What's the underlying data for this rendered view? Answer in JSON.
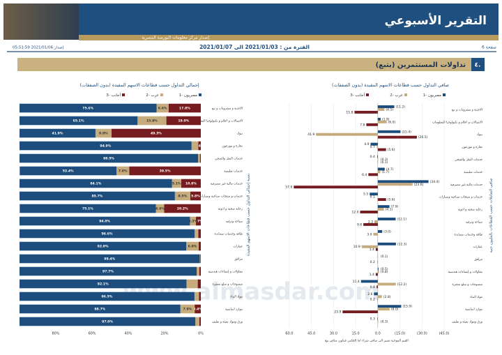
{
  "header": {
    "title": "التقرير الأسبوعي",
    "publisher": "إصدار مركز معلومات البورصة المصرية",
    "page": "صفحة 6",
    "period": "الفترة من : 2021/01/03 الى 2021/01/07",
    "issued": "إصدار 2021/01/06 05:51:59"
  },
  "section": {
    "number": "٤.",
    "title": "تداولات المستثمرين (بتبع)"
  },
  "watermark": "www.almasdar.com",
  "chart_data": [
    {
      "type": "bar",
      "title": "صافي التداول حسب قطاعات الاسهم المقيدة (بدون الصفقات)",
      "y_label": "صافي التعاملات حسب القطاعات بالمليون جنيه",
      "note": "القيم الموجبة تشير الى صافي شراء اما العكس فيكون صافي بيع",
      "categories": [
        "الاغذية و مشروبات و تبغ",
        "الاتصالات و اعلام و تكنولوجيا المعلومات",
        "بنوك",
        "تجارة و موزعون",
        "خدمات النقل والشحن",
        "خدمات تعليمية",
        "خدمات مالية غير مصرفية",
        "خدمات و منتجات صناعية وسيارات",
        "رعاية صحية و ادوية",
        "سياحة وترفيه",
        "طاقة وخدمات مساندة",
        "عقارات",
        "مرافق",
        "مقاولات و إنشاءات هندسية",
        "منسوجات و سلع معمرة",
        "مواد البناء",
        "موارد اساسية",
        "ورق ومواد تعبئة و تغليف"
      ],
      "series": [
        {
          "name": "مصريون -1",
          "color": "#1d4d7c",
          "values": [
            -11.2,
            -1.9,
            -15.4,
            4.9,
            0.4,
            -4.7,
            -34.4,
            5.5,
            -7.9,
            -12.1,
            -3.0,
            -12.3,
            -0.1,
            -0.5,
            11.4,
            2.6,
            -15.9,
            0.3
          ],
          "value_labels": [
            "(11.2)",
            "(1.9)",
            "(15.4)",
            "4.9",
            "0.4",
            "(4.7)",
            "(34.4)",
            "5.5",
            "(7.9)",
            "(12.1)",
            "(3.0)",
            "(12.3)",
            "(0.1)",
            "(0.5)",
            "11.4",
            "2.6",
            "(15.9)",
            "0.3"
          ]
        },
        {
          "name": "عرب -2",
          "color": "#c6ab7c",
          "values": [
            -4.5,
            -6.0,
            41.9,
            0.7,
            -0.3,
            -1.7,
            -23.6,
            0.1,
            -4.1,
            2.3,
            3.0,
            10.9,
            0,
            -0.8,
            -12.2,
            -2.8,
            -8.0,
            -0.3
          ],
          "value_labels": [
            "(4.5)",
            "(6.0)",
            "41.9",
            "0.7",
            "(0.3)",
            "(1.7)",
            "(23.6)",
            "0.1",
            "(4.1)",
            "2.3",
            "3.0",
            "10.9",
            null,
            "(0.8)",
            "(12.2)",
            "(2.8)",
            "(8.0)",
            "(0.3)"
          ]
        },
        {
          "name": "أجانب -3",
          "color": "#761b1f",
          "values": [
            15.8,
            7.8,
            -26.5,
            -5.6,
            -0.1,
            6.4,
            57.0,
            -5.6,
            12.0,
            9.8,
            0,
            1.4,
            0.2,
            1.4,
            0.8,
            0.2,
            23.9,
            0
          ],
          "value_labels": [
            "15.8",
            "7.8",
            "(26.5)",
            "(5.6)",
            "(0.1)",
            "6.4",
            "57.0",
            "(5.6)",
            "12.0",
            "9.8",
            null,
            "1.4",
            "0.2",
            "1.4",
            "0.8",
            "0.2",
            "23.9",
            null
          ]
        }
      ],
      "xlim": [
        60,
        -45
      ],
      "xticks": [
        {
          "value": 60,
          "label": "60.0"
        },
        {
          "value": 45,
          "label": "45.0"
        },
        {
          "value": 30,
          "label": "30.0"
        },
        {
          "value": 15,
          "label": "15.0"
        },
        {
          "value": 0,
          "label": "0.0"
        },
        {
          "value": -15,
          "label": "(15.0)"
        },
        {
          "value": -30,
          "label": "(30.0)"
        },
        {
          "value": -45,
          "label": "(45.0)"
        }
      ],
      "grid": true
    },
    {
      "type": "stacked_bar",
      "title": "إجمالي التداول حسب قطاعات الاسهم المقيدة (بدون الصفقات)",
      "y_label": "نسبة إجمالي التداول حسب قطاعات الاسهم المقيدة",
      "categories": [
        "الاغذية و مشروبات و تبغ",
        "الاتصالات و اعلام و تكنولوجيا المعلومات",
        "بنوك",
        "تجارة و موزعون",
        "خدمات النقل والشحن",
        "خدمات تعليمية",
        "خدمات مالية غير مصرفية",
        "خدمات و منتجات صناعية وسيارات",
        "رعاية صحية و ادوية",
        "سياحة وترفيه",
        "طاقة وخدمات مساندة",
        "عقارات",
        "مرافق",
        "مقاولات و إنشاءات هندسية",
        "منسوجات و سلع معمرة",
        "مواد البناء",
        "موارد اساسية",
        "ورق ومواد تعبئة و تغليف"
      ],
      "series": [
        {
          "name": "مصريون -1",
          "color": "#1d4d7c",
          "values": [
            75.6,
            65.1,
            41.9,
            94.9,
            98.5,
            53.4,
            84.1,
            85.7,
            75.1,
            94.0,
            96.6,
            92.0,
            99.4,
            97.7,
            92.1,
            96.5,
            88.7,
            97.0
          ],
          "value_labels": [
            "75.6%",
            "65.1%",
            "41.9%",
            "94.9%",
            "98.5%",
            "53.4%",
            "84.1%",
            "85.7%",
            "75.1%",
            "94.0%",
            "96.6%",
            "92.0%",
            "99.4%",
            "97.7%",
            "92.1%",
            "96.5%",
            "88.7%",
            "97.0%"
          ]
        },
        {
          "name": "عرب -2",
          "color": "#c6ab7c",
          "values": [
            6.6,
            15.9,
            8.8,
            3.7,
            1.0,
            7.0,
            5.1,
            8.5,
            4.6,
            3.3,
            2.0,
            6.8,
            0.3,
            1.5,
            6.2,
            2.5,
            7.9,
            2.2
          ],
          "value_labels": [
            "6.6%",
            "15.9%",
            "8.8%",
            null,
            null,
            "7.0%",
            "5.1%",
            "8.5%",
            "4.6%",
            "3.3%",
            null,
            "6.8%",
            null,
            null,
            null,
            null,
            "7.9%",
            null
          ]
        },
        {
          "name": "أجانب -3",
          "color": "#761b1f",
          "values": [
            17.8,
            19.0,
            49.3,
            1.4,
            0.5,
            39.5,
            10.8,
            5.8,
            20.2,
            2.7,
            1.4,
            1.2,
            0.3,
            0.8,
            1.7,
            1.0,
            3.4,
            0.8
          ],
          "value_labels": [
            "17.8%",
            "19.0%",
            "49.3%",
            "1.4%",
            null,
            "39.5%",
            "10.8%",
            "5.8%",
            "20.2%",
            "2.7%",
            null,
            null,
            null,
            null,
            null,
            null,
            "3.4%",
            null
          ]
        }
      ],
      "xlim": [
        100,
        0
      ],
      "xticks": [
        {
          "value": 80,
          "label": "80%"
        },
        {
          "value": 60,
          "label": "60%"
        },
        {
          "value": 40,
          "label": "40%"
        },
        {
          "value": 20,
          "label": "20%"
        },
        {
          "value": 0,
          "label": "0%"
        }
      ],
      "grid": false
    }
  ]
}
